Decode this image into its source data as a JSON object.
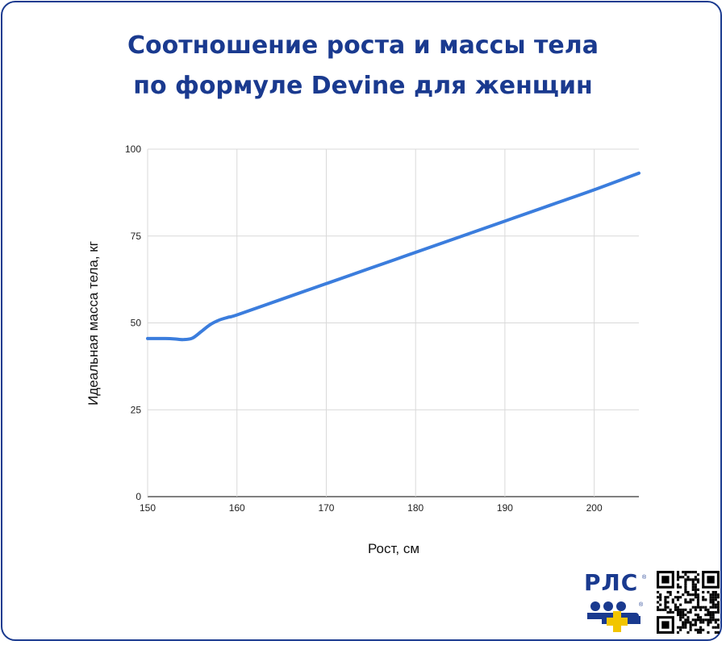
{
  "title": {
    "line1": "Соотношение роста и массы тела",
    "line2": "по формуле Devine для женщин"
  },
  "colors": {
    "frame": "#1a3a8f",
    "title": "#1a3a8f",
    "line": "#3b7ddd",
    "grid": "#d9d9d9",
    "logo_blue": "#1a3a8f",
    "logo_cross": "#f2c500"
  },
  "logo": {
    "text": "РЛС",
    "icon": "rls-logo-icon"
  },
  "qr": {
    "icon": "qr-code-icon"
  },
  "chart_data": {
    "type": "line",
    "title": "",
    "xlabel": "Рост, см",
    "ylabel": "Идеальная масса тела, кг",
    "xlim": [
      150,
      205
    ],
    "ylim": [
      0,
      100
    ],
    "xticks": [
      150,
      160,
      170,
      180,
      190,
      200
    ],
    "yticks": [
      0,
      25,
      50,
      75,
      100
    ],
    "grid": true,
    "series": [
      {
        "points": [
          [
            150,
            45.5
          ],
          [
            151,
            45.5
          ],
          [
            152,
            45.5
          ],
          [
            153,
            45.4
          ],
          [
            154,
            45.2
          ],
          [
            155,
            45.6
          ],
          [
            156,
            47.5
          ],
          [
            157,
            49.5
          ],
          [
            158,
            50.8
          ],
          [
            159,
            51.6
          ],
          [
            160,
            52.3
          ],
          [
            165,
            56.8
          ],
          [
            170,
            61.3
          ],
          [
            175,
            65.8
          ],
          [
            180,
            70.3
          ],
          [
            185,
            74.8
          ],
          [
            190,
            79.3
          ],
          [
            195,
            83.8
          ],
          [
            200,
            88.3
          ],
          [
            205,
            93.1
          ]
        ]
      }
    ]
  }
}
